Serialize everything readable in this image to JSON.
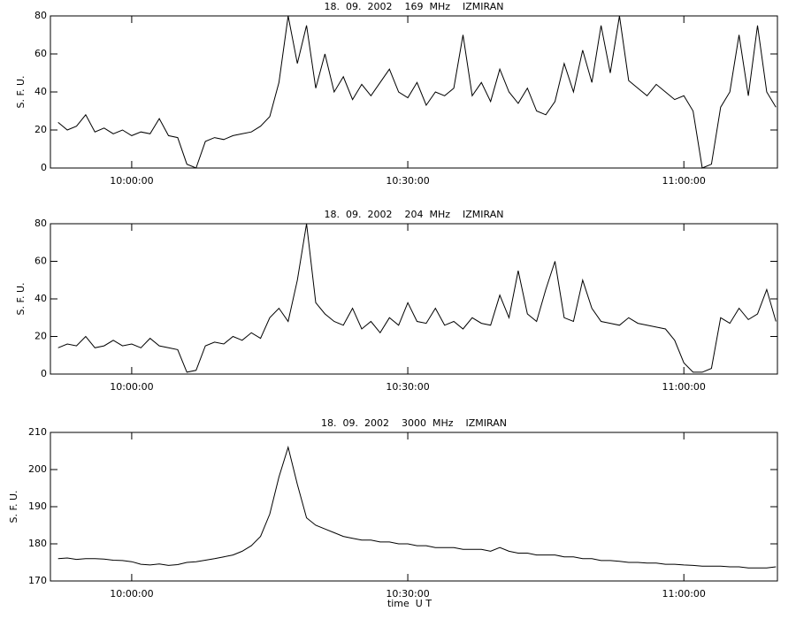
{
  "chart_data": [
    {
      "type": "line",
      "title": "18.  09.  2002    169  MHz    IZMIRAN",
      "y_label": "S. F. U.",
      "x": [
        "09:52:00",
        "09:53:00",
        "09:54:00",
        "09:55:00",
        "09:56:00",
        "09:57:00",
        "09:58:00",
        "09:59:00",
        "10:00:00",
        "10:01:00",
        "10:02:00",
        "10:03:00",
        "10:04:00",
        "10:05:00",
        "10:06:00",
        "10:07:00",
        "10:08:00",
        "10:09:00",
        "10:10:00",
        "10:11:00",
        "10:12:00",
        "10:13:00",
        "10:14:00",
        "10:15:00",
        "10:16:00",
        "10:17:00",
        "10:18:00",
        "10:19:00",
        "10:20:00",
        "10:21:00",
        "10:22:00",
        "10:23:00",
        "10:24:00",
        "10:25:00",
        "10:26:00",
        "10:27:00",
        "10:28:00",
        "10:29:00",
        "10:30:00",
        "10:31:00",
        "10:32:00",
        "10:33:00",
        "10:34:00",
        "10:35:00",
        "10:36:00",
        "10:37:00",
        "10:38:00",
        "10:39:00",
        "10:40:00",
        "10:41:00",
        "10:42:00",
        "10:43:00",
        "10:44:00",
        "10:45:00",
        "10:46:00",
        "10:47:00",
        "10:48:00",
        "10:49:00",
        "10:50:00",
        "10:51:00",
        "10:52:00",
        "10:53:00",
        "10:54:00",
        "10:55:00",
        "10:56:00",
        "10:57:00",
        "10:58:00",
        "10:59:00",
        "11:00:00",
        "11:01:00",
        "11:02:00",
        "11:03:00",
        "11:04:00",
        "11:05:00",
        "11:06:00",
        "11:07:00",
        "11:08:00",
        "11:09:00",
        "11:10:00"
      ],
      "series": [
        {
          "name": "169 MHz",
          "color": "#000000",
          "values": [
            24,
            20,
            22,
            28,
            19,
            21,
            18,
            20,
            17,
            19,
            18,
            26,
            17,
            16,
            2,
            0,
            14,
            16,
            15,
            17,
            18,
            19,
            22,
            27,
            45,
            80,
            55,
            75,
            42,
            60,
            40,
            48,
            36,
            44,
            38,
            45,
            52,
            40,
            37,
            45,
            33,
            40,
            38,
            42,
            70,
            38,
            45,
            35,
            52,
            40,
            34,
            42,
            30,
            28,
            35,
            55,
            40,
            62,
            45,
            75,
            50,
            80,
            46,
            42,
            38,
            44,
            40,
            36,
            38,
            30,
            0,
            2,
            32,
            40,
            70,
            38,
            75,
            40,
            32
          ]
        }
      ],
      "xlim": [
        "09:51:10",
        "11:10:10"
      ],
      "xticks": [
        "10:00:00",
        "10:30:00",
        "11:00:00"
      ],
      "ylim": [
        0,
        80
      ],
      "yticks": [
        0,
        20,
        40,
        60,
        80
      ]
    },
    {
      "type": "line",
      "title": "18.  09.  2002    204  MHz    IZMIRAN",
      "y_label": "S. F. U.",
      "x": [
        "09:52:00",
        "09:53:00",
        "09:54:00",
        "09:55:00",
        "09:56:00",
        "09:57:00",
        "09:58:00",
        "09:59:00",
        "10:00:00",
        "10:01:00",
        "10:02:00",
        "10:03:00",
        "10:04:00",
        "10:05:00",
        "10:06:00",
        "10:07:00",
        "10:08:00",
        "10:09:00",
        "10:10:00",
        "10:11:00",
        "10:12:00",
        "10:13:00",
        "10:14:00",
        "10:15:00",
        "10:16:00",
        "10:17:00",
        "10:18:00",
        "10:19:00",
        "10:20:00",
        "10:21:00",
        "10:22:00",
        "10:23:00",
        "10:24:00",
        "10:25:00",
        "10:26:00",
        "10:27:00",
        "10:28:00",
        "10:29:00",
        "10:30:00",
        "10:31:00",
        "10:32:00",
        "10:33:00",
        "10:34:00",
        "10:35:00",
        "10:36:00",
        "10:37:00",
        "10:38:00",
        "10:39:00",
        "10:40:00",
        "10:41:00",
        "10:42:00",
        "10:43:00",
        "10:44:00",
        "10:45:00",
        "10:46:00",
        "10:47:00",
        "10:48:00",
        "10:49:00",
        "10:50:00",
        "10:51:00",
        "10:52:00",
        "10:53:00",
        "10:54:00",
        "10:55:00",
        "10:56:00",
        "10:57:00",
        "10:58:00",
        "10:59:00",
        "11:00:00",
        "11:01:00",
        "11:02:00",
        "11:03:00",
        "11:04:00",
        "11:05:00",
        "11:06:00",
        "11:07:00",
        "11:08:00",
        "11:09:00",
        "11:10:00"
      ],
      "series": [
        {
          "name": "204 MHz",
          "color": "#000000",
          "values": [
            14,
            16,
            15,
            20,
            14,
            15,
            18,
            15,
            16,
            14,
            19,
            15,
            14,
            13,
            1,
            2,
            15,
            17,
            16,
            20,
            18,
            22,
            19,
            30,
            35,
            28,
            50,
            80,
            38,
            32,
            28,
            26,
            35,
            24,
            28,
            22,
            30,
            26,
            38,
            28,
            27,
            35,
            26,
            28,
            24,
            30,
            27,
            26,
            42,
            30,
            55,
            32,
            28,
            45,
            60,
            30,
            28,
            50,
            35,
            28,
            27,
            26,
            30,
            27,
            26,
            25,
            24,
            18,
            6,
            1,
            1,
            3,
            30,
            27,
            35,
            29,
            32,
            45,
            28
          ]
        }
      ],
      "xlim": [
        "09:51:10",
        "11:10:10"
      ],
      "xticks": [
        "10:00:00",
        "10:30:00",
        "11:00:00"
      ],
      "ylim": [
        0,
        80
      ],
      "yticks": [
        0,
        20,
        40,
        60,
        80
      ]
    },
    {
      "type": "line",
      "title": "18.  09.  2002    3000  MHz    IZMIRAN",
      "y_label": "S. F. U.",
      "x_label": "time  U T",
      "x": [
        "09:52:00",
        "09:53:00",
        "09:54:00",
        "09:55:00",
        "09:56:00",
        "09:57:00",
        "09:58:00",
        "09:59:00",
        "10:00:00",
        "10:01:00",
        "10:02:00",
        "10:03:00",
        "10:04:00",
        "10:05:00",
        "10:06:00",
        "10:07:00",
        "10:08:00",
        "10:09:00",
        "10:10:00",
        "10:11:00",
        "10:12:00",
        "10:13:00",
        "10:14:00",
        "10:15:00",
        "10:16:00",
        "10:17:00",
        "10:18:00",
        "10:19:00",
        "10:20:00",
        "10:21:00",
        "10:22:00",
        "10:23:00",
        "10:24:00",
        "10:25:00",
        "10:26:00",
        "10:27:00",
        "10:28:00",
        "10:29:00",
        "10:30:00",
        "10:31:00",
        "10:32:00",
        "10:33:00",
        "10:34:00",
        "10:35:00",
        "10:36:00",
        "10:37:00",
        "10:38:00",
        "10:39:00",
        "10:40:00",
        "10:41:00",
        "10:42:00",
        "10:43:00",
        "10:44:00",
        "10:45:00",
        "10:46:00",
        "10:47:00",
        "10:48:00",
        "10:49:00",
        "10:50:00",
        "10:51:00",
        "10:52:00",
        "10:53:00",
        "10:54:00",
        "10:55:00",
        "10:56:00",
        "10:57:00",
        "10:58:00",
        "10:59:00",
        "11:00:00",
        "11:01:00",
        "11:02:00",
        "11:03:00",
        "11:04:00",
        "11:05:00",
        "11:06:00",
        "11:07:00",
        "11:08:00",
        "11:09:00",
        "11:10:00"
      ],
      "series": [
        {
          "name": "3000 MHz",
          "color": "#000000",
          "values": [
            176,
            176.2,
            175.8,
            176,
            176,
            175.9,
            175.6,
            175.5,
            175.2,
            174.5,
            174.3,
            174.6,
            174.2,
            174.4,
            175,
            175.2,
            175.6,
            176,
            176.5,
            177,
            178,
            179.5,
            182,
            188,
            198,
            206,
            196,
            187,
            185,
            184,
            183,
            182,
            181.5,
            181,
            181,
            180.5,
            180.5,
            180,
            180,
            179.5,
            179.5,
            179,
            179,
            179,
            178.5,
            178.5,
            178.5,
            178,
            179,
            178,
            177.5,
            177.5,
            177,
            177,
            177,
            176.5,
            176.5,
            176,
            176,
            175.5,
            175.5,
            175.3,
            175,
            175,
            174.8,
            174.8,
            174.5,
            174.5,
            174.3,
            174.2,
            174,
            174,
            174,
            173.8,
            173.8,
            173.5,
            173.5,
            173.5,
            173.8
          ]
        }
      ],
      "xlim": [
        "09:51:10",
        "11:10:10"
      ],
      "xticks": [
        "10:00:00",
        "10:30:00",
        "11:00:00"
      ],
      "ylim": [
        170,
        210
      ],
      "yticks": [
        170,
        180,
        190,
        200,
        210
      ]
    }
  ]
}
